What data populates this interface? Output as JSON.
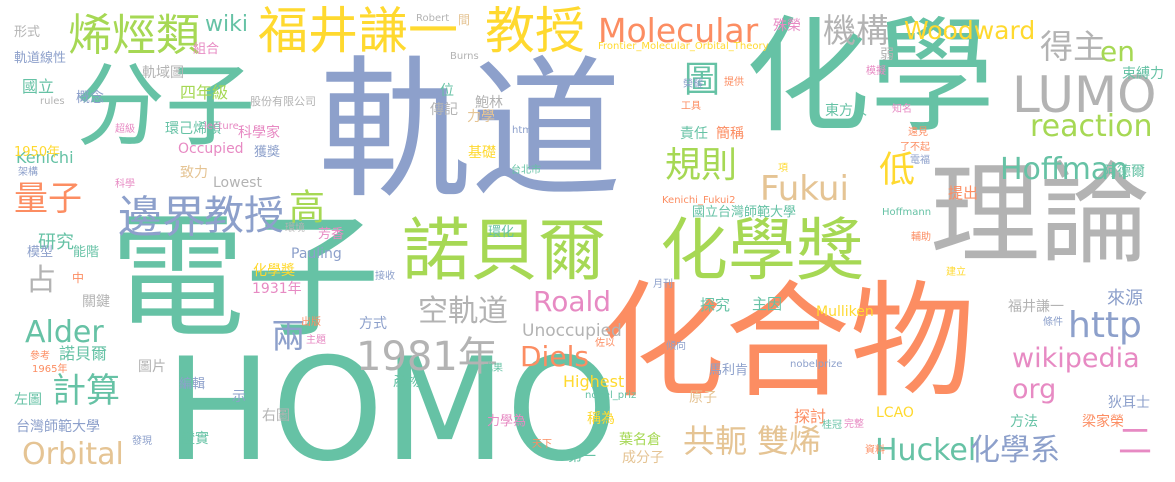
{
  "colors": {
    "teal": "#66c2a5",
    "orange": "#fc8d62",
    "blue": "#8da0cb",
    "pink": "#e78ac3",
    "green": "#a6d854",
    "yellow": "#ffd92f",
    "tan": "#e5c494",
    "gray": "#b3b3b3",
    "background": "#ffffff"
  },
  "words": [
    {
      "text": "軌道",
      "color": "blue"
    },
    {
      "text": "電子",
      "color": "teal"
    },
    {
      "text": "化合物",
      "color": "orange"
    },
    {
      "text": "化學",
      "color": "teal"
    },
    {
      "text": "HOMO",
      "color": "teal"
    },
    {
      "text": "分子",
      "color": "teal"
    },
    {
      "text": "理論",
      "color": "gray"
    },
    {
      "text": "諾貝爾",
      "color": "green"
    },
    {
      "text": "化學獎",
      "color": "green"
    },
    {
      "text": "福井謙一",
      "color": "yellow"
    },
    {
      "text": "教授",
      "color": "yellow"
    },
    {
      "text": "LUMO",
      "color": "gray"
    },
    {
      "text": "邊界",
      "color": "blue"
    },
    {
      "text": "教授",
      "color": "blue"
    },
    {
      "text": "烯烴類",
      "color": "green"
    },
    {
      "text": "Molecular",
      "color": "orange"
    },
    {
      "text": "機構",
      "color": "gray"
    },
    {
      "text": "Woodward",
      "color": "yellow"
    },
    {
      "text": "得主",
      "color": "gray"
    },
    {
      "text": "en",
      "color": "green"
    },
    {
      "text": "reaction",
      "color": "green"
    },
    {
      "text": "Hoffman",
      "color": "teal"
    },
    {
      "text": "Fukui",
      "color": "tan"
    },
    {
      "text": "規則",
      "color": "green"
    },
    {
      "text": "圖",
      "color": "teal"
    },
    {
      "text": "高",
      "color": "green"
    },
    {
      "text": "低",
      "color": "yellow"
    },
    {
      "text": "http",
      "color": "blue"
    },
    {
      "text": "1981年",
      "color": "gray"
    },
    {
      "text": "空軌道",
      "color": "gray"
    },
    {
      "text": "Roald",
      "color": "pink"
    },
    {
      "text": "Alder",
      "color": "teal"
    },
    {
      "text": "Diels",
      "color": "orange"
    },
    {
      "text": "wikipedia",
      "color": "pink"
    },
    {
      "text": "org",
      "color": "pink"
    },
    {
      "text": "計算",
      "color": "teal"
    },
    {
      "text": "Orbital",
      "color": "tan"
    },
    {
      "text": "共軛",
      "color": "tan"
    },
    {
      "text": "雙烯",
      "color": "tan"
    },
    {
      "text": "Huckel",
      "color": "teal"
    },
    {
      "text": "化學系",
      "color": "blue"
    },
    {
      "text": "二",
      "color": "pink"
    },
    {
      "text": "量子",
      "color": "orange"
    },
    {
      "text": "兩",
      "color": "blue"
    },
    {
      "text": "占",
      "color": "gray"
    },
    {
      "text": "wiki",
      "color": "teal"
    },
    {
      "text": "Kenichi",
      "color": "teal"
    },
    {
      "text": "軌道線性",
      "color": "blue"
    },
    {
      "text": "組合",
      "color": "pink"
    },
    {
      "text": "國立",
      "color": "teal"
    },
    {
      "text": "概念",
      "color": "blue"
    },
    {
      "text": "四年級",
      "color": "green"
    },
    {
      "text": "傳記",
      "color": "gray"
    },
    {
      "text": "鮑林",
      "color": "gray"
    },
    {
      "text": "環己烯類",
      "color": "teal"
    },
    {
      "text": "Occupied",
      "color": "pink"
    },
    {
      "text": "科學家",
      "color": "pink"
    },
    {
      "text": "獲獎",
      "color": "blue"
    },
    {
      "text": "1950年",
      "color": "yellow"
    },
    {
      "text": "研究",
      "color": "teal"
    },
    {
      "text": "模型",
      "color": "blue"
    },
    {
      "text": "能階",
      "color": "teal"
    },
    {
      "text": "芳香",
      "color": "pink"
    },
    {
      "text": "Pauling",
      "color": "blue"
    },
    {
      "text": "化學獎",
      "color": "yellow"
    },
    {
      "text": "1931年",
      "color": "pink"
    },
    {
      "text": "關鍵",
      "color": "gray"
    },
    {
      "text": "方式",
      "color": "blue"
    },
    {
      "text": "Unoccupied",
      "color": "gray"
    },
    {
      "text": "諾貝爾",
      "color": "teal"
    },
    {
      "text": "圖片",
      "color": "gray"
    },
    {
      "text": "編輯",
      "color": "blue"
    },
    {
      "text": "產物",
      "color": "teal"
    },
    {
      "text": "Highest",
      "color": "yellow"
    },
    {
      "text": "馬利肯",
      "color": "blue"
    },
    {
      "text": "左圖",
      "color": "teal"
    },
    {
      "text": "右圖",
      "color": "gray"
    },
    {
      "text": "台灣師範大學",
      "color": "blue"
    },
    {
      "text": "證實",
      "color": "teal"
    },
    {
      "text": "力學為",
      "color": "pink"
    },
    {
      "text": "稱為",
      "color": "yellow"
    },
    {
      "text": "葉名倉",
      "color": "green"
    },
    {
      "text": "成分子",
      "color": "tan"
    },
    {
      "text": "第一",
      "color": "teal"
    },
    {
      "text": "探討",
      "color": "orange"
    },
    {
      "text": "探究",
      "color": "teal"
    },
    {
      "text": "主因",
      "color": "teal"
    },
    {
      "text": "Mulliken",
      "color": "yellow"
    },
    {
      "text": "福井謙一",
      "color": "gray"
    },
    {
      "text": "來源",
      "color": "blue"
    },
    {
      "text": "狄耳士",
      "color": "blue"
    },
    {
      "text": "梁家榮",
      "color": "orange"
    },
    {
      "text": "方法",
      "color": "teal"
    },
    {
      "text": "LCAO",
      "color": "yellow"
    },
    {
      "text": "原子",
      "color": "tan"
    },
    {
      "text": "東方人",
      "color": "teal"
    },
    {
      "text": "阿德爾",
      "color": "teal"
    },
    {
      "text": "提出",
      "color": "orange"
    },
    {
      "text": "國立台灣師範大學",
      "color": "teal"
    },
    {
      "text": "Lowest",
      "color": "gray"
    },
    {
      "text": "致力",
      "color": "tan"
    },
    {
      "text": "環化",
      "color": "teal"
    },
    {
      "text": "責任",
      "color": "teal"
    },
    {
      "text": "簡稱",
      "color": "orange"
    },
    {
      "text": "力學",
      "color": "tan"
    },
    {
      "text": "基礎",
      "color": "yellow"
    },
    {
      "text": "殊榮",
      "color": "pink"
    },
    {
      "text": "束縛力",
      "color": "teal"
    },
    {
      "text": "形式",
      "color": "gray"
    },
    {
      "text": "間",
      "color": "tan"
    },
    {
      "text": "位",
      "color": "teal"
    },
    {
      "text": "弱",
      "color": "gray"
    },
    {
      "text": "軌域圖",
      "color": "gray"
    },
    {
      "text": "股份有限公司",
      "color": "gray"
    },
    {
      "text": "Robert",
      "color": "gray"
    },
    {
      "text": "Burns",
      "color": "gray"
    },
    {
      "text": "Frontier_Molecular_Orbital_Theory",
      "color": "yellow"
    },
    {
      "text": "lecture",
      "color": "pink"
    },
    {
      "text": "rules",
      "color": "gray"
    },
    {
      "text": "超級",
      "color": "pink"
    },
    {
      "text": "html",
      "color": "blue"
    },
    {
      "text": "台北市",
      "color": "teal"
    },
    {
      "text": "Kenichi_Fukui2",
      "color": "orange"
    },
    {
      "text": "Hoffmann",
      "color": "teal"
    },
    {
      "text": "nobelprize",
      "color": "blue"
    },
    {
      "text": "nobel_priz",
      "color": "teal"
    },
    {
      "text": "提供",
      "color": "orange"
    },
    {
      "text": "榮耀",
      "color": "blue"
    },
    {
      "text": "工具",
      "color": "orange"
    },
    {
      "text": "模擬",
      "color": "pink"
    },
    {
      "text": "知名",
      "color": "pink"
    },
    {
      "text": "遠見",
      "color": "orange"
    },
    {
      "text": "了不起",
      "color": "orange"
    },
    {
      "text": "電福",
      "color": "blue"
    },
    {
      "text": "架構",
      "color": "blue"
    },
    {
      "text": "科學",
      "color": "pink"
    },
    {
      "text": "環境",
      "color": "gray"
    },
    {
      "text": "項",
      "color": "yellow"
    },
    {
      "text": "輔助",
      "color": "orange"
    },
    {
      "text": "中",
      "color": "orange"
    },
    {
      "text": "接收",
      "color": "blue"
    },
    {
      "text": "月刊",
      "color": "blue"
    },
    {
      "text": "出版",
      "color": "orange"
    },
    {
      "text": "主題",
      "color": "pink"
    },
    {
      "text": "參考",
      "color": "orange"
    },
    {
      "text": "1965年",
      "color": "orange"
    },
    {
      "text": "成果",
      "color": "teal"
    },
    {
      "text": "傾向",
      "color": "blue"
    },
    {
      "text": "佐以",
      "color": "orange"
    },
    {
      "text": "條件",
      "color": "blue"
    },
    {
      "text": "建立",
      "color": "yellow"
    },
    {
      "text": "示",
      "color": "blue"
    },
    {
      "text": "發現",
      "color": "blue"
    },
    {
      "text": "天下",
      "color": "orange"
    },
    {
      "text": "桂冠",
      "color": "teal"
    },
    {
      "text": "完整",
      "color": "pink"
    },
    {
      "text": "資料",
      "color": "orange"
    }
  ]
}
